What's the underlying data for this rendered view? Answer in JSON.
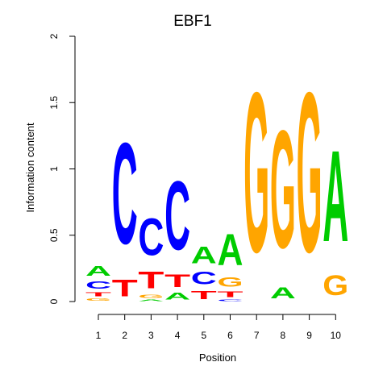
{
  "chart_data": {
    "type": "sequence-logo",
    "title": "EBF1",
    "xlabel": "Position",
    "ylabel": "Information content",
    "ylim": [
      0,
      2
    ],
    "yticks": [
      "0",
      "0.5",
      "1",
      "1.5",
      "2"
    ],
    "colors": {
      "A": "#00cc00",
      "C": "#0000ff",
      "G": "#ffa500",
      "T": "#ff0000"
    },
    "positions": [
      {
        "label": "1",
        "stack": [
          {
            "base": "G",
            "value": 0.03
          },
          {
            "base": "T",
            "value": 0.05
          },
          {
            "base": "C",
            "value": 0.09
          },
          {
            "base": "A",
            "value": 0.12
          }
        ]
      },
      {
        "label": "2",
        "stack": [
          {
            "base": "T",
            "value": 0.2
          },
          {
            "base": "C",
            "value": 1.22
          }
        ]
      },
      {
        "label": "3",
        "stack": [
          {
            "base": "A",
            "value": 0.02
          },
          {
            "base": "G",
            "value": 0.04
          },
          {
            "base": "T",
            "value": 0.2
          },
          {
            "base": "C",
            "value": 0.45
          }
        ]
      },
      {
        "label": "4",
        "stack": [
          {
            "base": "A",
            "value": 0.08
          },
          {
            "base": "T",
            "value": 0.15
          },
          {
            "base": "C",
            "value": 0.83
          }
        ]
      },
      {
        "label": "5",
        "stack": [
          {
            "base": "T",
            "value": 0.1
          },
          {
            "base": "C",
            "value": 0.15
          },
          {
            "base": "A",
            "value": 0.2
          }
        ]
      },
      {
        "label": "6",
        "stack": [
          {
            "base": "C",
            "value": 0.02
          },
          {
            "base": "T",
            "value": 0.07
          },
          {
            "base": "G",
            "value": 0.11
          },
          {
            "base": "A",
            "value": 0.38
          }
        ]
      },
      {
        "label": "7",
        "stack": [
          {
            "base": "G",
            "value": 1.93
          }
        ]
      },
      {
        "label": "8",
        "stack": [
          {
            "base": "A",
            "value": 0.13
          },
          {
            "base": "G",
            "value": 1.42
          }
        ]
      },
      {
        "label": "9",
        "stack": [
          {
            "base": "G",
            "value": 1.93
          }
        ]
      },
      {
        "label": "10",
        "stack": [
          {
            "base": "G",
            "value": 0.24
          },
          {
            "base": "A",
            "value": 1.1
          }
        ]
      }
    ]
  }
}
